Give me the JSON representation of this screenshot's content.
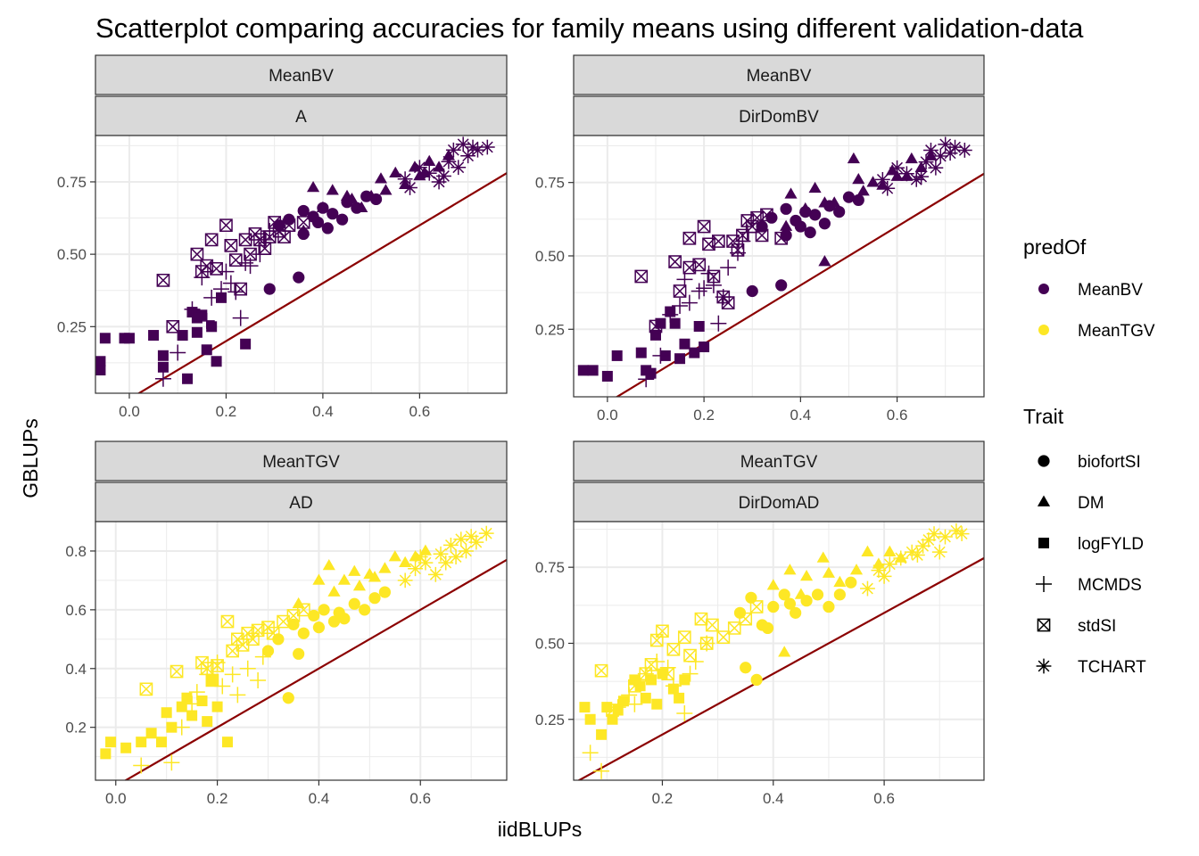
{
  "title": "Scatterplot comparing accuracies for family means using different validation-data",
  "xlabel": "iidBLUPs",
  "ylabel": "GBLUPs",
  "colors": {
    "MeanBV": "#440154",
    "MeanTGV": "#FDE725",
    "line": "#8B0000"
  },
  "legend": {
    "predOf": {
      "title": "predOf",
      "items": [
        "MeanBV",
        "MeanTGV"
      ]
    },
    "trait": {
      "title": "Trait",
      "items": [
        "biofortSI",
        "DM",
        "logFYLD",
        "MCMDS",
        "stdSI",
        "TCHART"
      ]
    }
  },
  "chart_data": [
    {
      "type": "scatter",
      "strip_top": "MeanBV",
      "strip_bottom": "A",
      "predOf": "MeanBV",
      "xlim": [
        -0.07,
        0.78
      ],
      "ylim": [
        0.02,
        0.91
      ],
      "xticks": [
        0.0,
        0.2,
        0.4,
        0.6
      ],
      "yticks": [
        0.25,
        0.5,
        0.75
      ],
      "xtick_labels": [
        "0.0",
        "0.2",
        "0.4",
        "0.6"
      ],
      "ytick_labels": [
        "0.25",
        "0.50",
        "0.75"
      ],
      "reference_line": "y = x",
      "series": [
        {
          "name": "biofortSI",
          "x": [
            0.29,
            0.35,
            0.31,
            0.33,
            0.36,
            0.38,
            0.4,
            0.42,
            0.44,
            0.45,
            0.47,
            0.49,
            0.51,
            0.36,
            0.39,
            0.41
          ],
          "y": [
            0.38,
            0.42,
            0.6,
            0.62,
            0.65,
            0.63,
            0.66,
            0.64,
            0.62,
            0.68,
            0.66,
            0.7,
            0.69,
            0.57,
            0.61,
            0.59
          ]
        },
        {
          "name": "DM",
          "x": [
            0.36,
            0.4,
            0.42,
            0.45,
            0.48,
            0.5,
            0.53,
            0.55,
            0.57,
            0.59,
            0.61,
            0.62,
            0.64,
            0.66,
            0.38,
            0.46,
            0.52,
            0.6
          ],
          "y": [
            0.58,
            0.66,
            0.72,
            0.7,
            0.66,
            0.7,
            0.72,
            0.78,
            0.74,
            0.8,
            0.78,
            0.82,
            0.8,
            0.84,
            0.73,
            0.69,
            0.76,
            0.77
          ]
        },
        {
          "name": "logFYLD",
          "x": [
            -0.06,
            -0.06,
            -0.05,
            -0.01,
            0.0,
            0.05,
            0.07,
            0.07,
            0.12,
            0.13,
            0.14,
            0.15,
            0.16,
            0.17,
            0.18,
            0.19,
            0.24,
            0.14,
            0.11
          ],
          "y": [
            0.13,
            0.1,
            0.21,
            0.21,
            0.21,
            0.22,
            0.15,
            0.11,
            0.07,
            0.3,
            0.23,
            0.29,
            0.17,
            0.25,
            0.13,
            0.35,
            0.19,
            0.28,
            0.22
          ]
        },
        {
          "name": "MCMDS",
          "x": [
            0.07,
            0.1,
            0.13,
            0.16,
            0.17,
            0.19,
            0.2,
            0.22,
            0.23,
            0.25,
            0.27,
            0.28,
            0.29,
            0.15,
            0.21,
            0.24
          ],
          "y": [
            0.07,
            0.16,
            0.31,
            0.27,
            0.35,
            0.38,
            0.44,
            0.37,
            0.28,
            0.46,
            0.5,
            0.55,
            0.58,
            0.42,
            0.4,
            0.47
          ]
        },
        {
          "name": "stdSI",
          "x": [
            0.07,
            0.09,
            0.14,
            0.15,
            0.17,
            0.18,
            0.2,
            0.21,
            0.22,
            0.23,
            0.24,
            0.25,
            0.27,
            0.28,
            0.29,
            0.3,
            0.31,
            0.32,
            0.33,
            0.36,
            0.16,
            0.26
          ],
          "y": [
            0.41,
            0.25,
            0.5,
            0.44,
            0.55,
            0.45,
            0.6,
            0.53,
            0.48,
            0.38,
            0.55,
            0.5,
            0.55,
            0.52,
            0.56,
            0.61,
            0.58,
            0.56,
            0.6,
            0.61,
            0.46,
            0.57
          ]
        },
        {
          "name": "TCHART",
          "x": [
            0.57,
            0.6,
            0.62,
            0.64,
            0.66,
            0.67,
            0.68,
            0.69,
            0.7,
            0.71,
            0.72,
            0.74,
            0.58,
            0.65
          ],
          "y": [
            0.76,
            0.8,
            0.78,
            0.75,
            0.82,
            0.86,
            0.8,
            0.88,
            0.84,
            0.87,
            0.86,
            0.87,
            0.73,
            0.77
          ]
        }
      ]
    },
    {
      "type": "scatter",
      "strip_top": "MeanBV",
      "strip_bottom": "DirDomBV",
      "predOf": "MeanBV",
      "xlim": [
        -0.07,
        0.78
      ],
      "ylim": [
        0.02,
        0.91
      ],
      "xticks": [
        0.0,
        0.2,
        0.4,
        0.6
      ],
      "yticks": [
        0.25,
        0.5,
        0.75
      ],
      "xtick_labels": [
        "0.0",
        "0.2",
        "0.4",
        "0.6"
      ],
      "ytick_labels": [
        "0.25",
        "0.50",
        "0.75"
      ],
      "reference_line": "y = x",
      "series": [
        {
          "name": "biofortSI",
          "x": [
            0.3,
            0.36,
            0.32,
            0.34,
            0.37,
            0.39,
            0.41,
            0.43,
            0.45,
            0.46,
            0.48,
            0.5,
            0.52,
            0.37,
            0.4,
            0.42
          ],
          "y": [
            0.38,
            0.4,
            0.6,
            0.63,
            0.66,
            0.62,
            0.65,
            0.64,
            0.61,
            0.67,
            0.65,
            0.7,
            0.69,
            0.57,
            0.6,
            0.58
          ]
        },
        {
          "name": "DM",
          "x": [
            0.37,
            0.41,
            0.43,
            0.45,
            0.47,
            0.51,
            0.53,
            0.55,
            0.57,
            0.59,
            0.62,
            0.63,
            0.65,
            0.67,
            0.38,
            0.45,
            0.52,
            0.6
          ],
          "y": [
            0.6,
            0.66,
            0.73,
            0.48,
            0.68,
            0.83,
            0.72,
            0.75,
            0.74,
            0.79,
            0.77,
            0.83,
            0.8,
            0.84,
            0.71,
            0.68,
            0.76,
            0.77
          ]
        },
        {
          "name": "logFYLD",
          "x": [
            -0.05,
            -0.03,
            0.0,
            0.02,
            0.07,
            0.08,
            0.09,
            0.1,
            0.12,
            0.14,
            0.15,
            0.16,
            0.18,
            0.19,
            0.2,
            0.13,
            0.11
          ],
          "y": [
            0.11,
            0.11,
            0.09,
            0.16,
            0.17,
            0.11,
            0.1,
            0.23,
            0.16,
            0.27,
            0.15,
            0.2,
            0.17,
            0.26,
            0.19,
            0.31,
            0.27
          ]
        },
        {
          "name": "MCMDS",
          "x": [
            0.08,
            0.11,
            0.13,
            0.15,
            0.17,
            0.19,
            0.21,
            0.22,
            0.23,
            0.24,
            0.25,
            0.27,
            0.28,
            0.29,
            0.16,
            0.2
          ],
          "y": [
            0.08,
            0.16,
            0.3,
            0.33,
            0.34,
            0.38,
            0.44,
            0.4,
            0.27,
            0.36,
            0.46,
            0.51,
            0.55,
            0.58,
            0.42,
            0.39
          ]
        },
        {
          "name": "stdSI",
          "x": [
            0.07,
            0.1,
            0.14,
            0.15,
            0.17,
            0.19,
            0.2,
            0.21,
            0.22,
            0.24,
            0.25,
            0.26,
            0.27,
            0.28,
            0.29,
            0.3,
            0.31,
            0.32,
            0.33,
            0.36,
            0.17,
            0.23
          ],
          "y": [
            0.43,
            0.26,
            0.48,
            0.38,
            0.56,
            0.47,
            0.6,
            0.54,
            0.43,
            0.36,
            0.34,
            0.55,
            0.52,
            0.57,
            0.62,
            0.6,
            0.63,
            0.57,
            0.64,
            0.56,
            0.46,
            0.55
          ]
        },
        {
          "name": "TCHART",
          "x": [
            0.57,
            0.6,
            0.62,
            0.64,
            0.66,
            0.67,
            0.69,
            0.7,
            0.71,
            0.72,
            0.74,
            0.58,
            0.65,
            0.68
          ],
          "y": [
            0.76,
            0.8,
            0.78,
            0.76,
            0.82,
            0.86,
            0.84,
            0.88,
            0.85,
            0.87,
            0.86,
            0.73,
            0.77,
            0.8
          ]
        }
      ]
    },
    {
      "type": "scatter",
      "strip_top": "MeanTGV",
      "strip_bottom": "AD",
      "predOf": "MeanTGV",
      "xlim": [
        -0.04,
        0.77
      ],
      "ylim": [
        0.02,
        0.9
      ],
      "xticks": [
        0.0,
        0.2,
        0.4,
        0.6
      ],
      "yticks": [
        0.2,
        0.4,
        0.6,
        0.8
      ],
      "xtick_labels": [
        "0.0",
        "0.2",
        "0.4",
        "0.6"
      ],
      "ytick_labels": [
        "0.2",
        "0.4",
        "0.6",
        "0.8"
      ],
      "reference_line": "y = x",
      "series": [
        {
          "name": "biofortSI",
          "x": [
            0.34,
            0.3,
            0.32,
            0.35,
            0.37,
            0.39,
            0.41,
            0.43,
            0.45,
            0.47,
            0.49,
            0.51,
            0.53,
            0.36,
            0.4,
            0.44
          ],
          "y": [
            0.3,
            0.46,
            0.5,
            0.55,
            0.52,
            0.58,
            0.6,
            0.56,
            0.57,
            0.62,
            0.6,
            0.64,
            0.66,
            0.45,
            0.54,
            0.59
          ]
        },
        {
          "name": "DM",
          "x": [
            0.36,
            0.4,
            0.42,
            0.45,
            0.48,
            0.5,
            0.53,
            0.55,
            0.57,
            0.59,
            0.61,
            0.43,
            0.51,
            0.47
          ],
          "y": [
            0.62,
            0.7,
            0.75,
            0.7,
            0.68,
            0.72,
            0.74,
            0.78,
            0.76,
            0.78,
            0.8,
            0.66,
            0.71,
            0.73
          ]
        },
        {
          "name": "logFYLD",
          "x": [
            -0.02,
            -0.01,
            0.02,
            0.05,
            0.07,
            0.09,
            0.11,
            0.13,
            0.15,
            0.17,
            0.19,
            0.2,
            0.22,
            0.18,
            0.14,
            0.1
          ],
          "y": [
            0.11,
            0.15,
            0.13,
            0.15,
            0.18,
            0.15,
            0.2,
            0.27,
            0.24,
            0.29,
            0.36,
            0.27,
            0.15,
            0.22,
            0.3,
            0.25
          ]
        },
        {
          "name": "MCMDS",
          "x": [
            0.05,
            0.11,
            0.13,
            0.16,
            0.18,
            0.2,
            0.23,
            0.24,
            0.26,
            0.28,
            0.29,
            0.15,
            0.21
          ],
          "y": [
            0.07,
            0.08,
            0.2,
            0.32,
            0.38,
            0.42,
            0.38,
            0.31,
            0.4,
            0.36,
            0.44,
            0.28,
            0.34
          ]
        },
        {
          "name": "stdSI",
          "x": [
            0.06,
            0.12,
            0.17,
            0.19,
            0.2,
            0.22,
            0.23,
            0.24,
            0.26,
            0.27,
            0.28,
            0.3,
            0.31,
            0.33,
            0.35,
            0.37,
            0.18,
            0.25
          ],
          "y": [
            0.33,
            0.39,
            0.42,
            0.36,
            0.41,
            0.56,
            0.46,
            0.5,
            0.52,
            0.5,
            0.53,
            0.54,
            0.52,
            0.56,
            0.58,
            0.6,
            0.4,
            0.48
          ]
        },
        {
          "name": "TCHART",
          "x": [
            0.57,
            0.59,
            0.61,
            0.63,
            0.65,
            0.66,
            0.67,
            0.68,
            0.69,
            0.7,
            0.71,
            0.73,
            0.6,
            0.64
          ],
          "y": [
            0.7,
            0.74,
            0.76,
            0.72,
            0.76,
            0.82,
            0.78,
            0.84,
            0.8,
            0.85,
            0.83,
            0.86,
            0.78,
            0.79
          ]
        }
      ]
    },
    {
      "type": "scatter",
      "strip_top": "MeanTGV",
      "strip_bottom": "DirDomAD",
      "predOf": "MeanTGV",
      "xlim": [
        0.04,
        0.78
      ],
      "ylim": [
        0.05,
        0.9
      ],
      "xticks": [
        0.2,
        0.4,
        0.6
      ],
      "yticks": [
        0.25,
        0.5,
        0.75
      ],
      "xtick_labels": [
        "0.2",
        "0.4",
        "0.6"
      ],
      "ytick_labels": [
        "0.25",
        "0.50",
        "0.75"
      ],
      "reference_line": "y = x",
      "series": [
        {
          "name": "biofortSI",
          "x": [
            0.35,
            0.37,
            0.34,
            0.36,
            0.38,
            0.4,
            0.42,
            0.44,
            0.46,
            0.48,
            0.5,
            0.52,
            0.54,
            0.39,
            0.43
          ],
          "y": [
            0.42,
            0.38,
            0.6,
            0.65,
            0.56,
            0.62,
            0.66,
            0.6,
            0.64,
            0.66,
            0.62,
            0.66,
            0.7,
            0.55,
            0.63
          ]
        },
        {
          "name": "DM",
          "x": [
            0.42,
            0.4,
            0.43,
            0.46,
            0.49,
            0.52,
            0.55,
            0.57,
            0.59,
            0.61,
            0.63,
            0.45,
            0.5
          ],
          "y": [
            0.47,
            0.69,
            0.74,
            0.72,
            0.78,
            0.7,
            0.74,
            0.8,
            0.76,
            0.8,
            0.78,
            0.66,
            0.73
          ]
        },
        {
          "name": "logFYLD",
          "x": [
            0.06,
            0.07,
            0.09,
            0.1,
            0.11,
            0.13,
            0.15,
            0.16,
            0.17,
            0.18,
            0.2,
            0.22,
            0.23,
            0.24,
            0.12,
            0.19
          ],
          "y": [
            0.29,
            0.25,
            0.2,
            0.29,
            0.25,
            0.31,
            0.38,
            0.36,
            0.32,
            0.38,
            0.4,
            0.35,
            0.32,
            0.38,
            0.28,
            0.3
          ]
        },
        {
          "name": "MCMDS",
          "x": [
            0.07,
            0.09,
            0.12,
            0.14,
            0.17,
            0.19,
            0.21,
            0.22,
            0.24,
            0.26,
            0.28,
            0.15,
            0.25
          ],
          "y": [
            0.14,
            0.08,
            0.29,
            0.33,
            0.4,
            0.44,
            0.42,
            0.36,
            0.27,
            0.44,
            0.5,
            0.3,
            0.4
          ]
        },
        {
          "name": "stdSI",
          "x": [
            0.09,
            0.11,
            0.15,
            0.17,
            0.18,
            0.19,
            0.2,
            0.22,
            0.24,
            0.25,
            0.27,
            0.29,
            0.31,
            0.33,
            0.35,
            0.37,
            0.21,
            0.28
          ],
          "y": [
            0.41,
            0.28,
            0.36,
            0.4,
            0.43,
            0.51,
            0.54,
            0.48,
            0.52,
            0.46,
            0.58,
            0.56,
            0.52,
            0.55,
            0.58,
            0.62,
            0.4,
            0.5
          ]
        },
        {
          "name": "TCHART",
          "x": [
            0.57,
            0.59,
            0.61,
            0.63,
            0.65,
            0.67,
            0.68,
            0.69,
            0.7,
            0.71,
            0.73,
            0.74,
            0.6,
            0.66
          ],
          "y": [
            0.68,
            0.74,
            0.76,
            0.78,
            0.8,
            0.82,
            0.84,
            0.86,
            0.8,
            0.85,
            0.87,
            0.86,
            0.72,
            0.79
          ]
        }
      ]
    }
  ]
}
